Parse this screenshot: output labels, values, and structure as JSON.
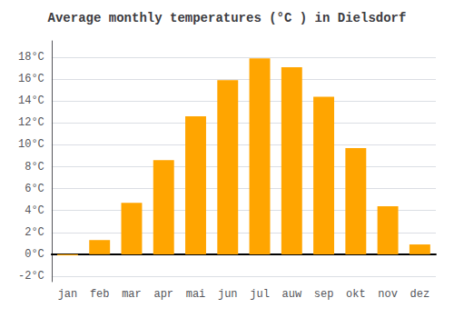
{
  "chart_data": {
    "type": "bar",
    "title": "Average monthly temperatures (°C ) in Dielsdorf",
    "categories": [
      "jan",
      "feb",
      "mar",
      "apr",
      "mai",
      "jun",
      "jul",
      "auw",
      "sep",
      "okt",
      "nov",
      "dez"
    ],
    "values": [
      -0.1,
      1.3,
      4.7,
      8.6,
      12.6,
      15.9,
      17.9,
      17.1,
      14.4,
      9.7,
      4.4,
      0.9
    ],
    "color": "#FFA500",
    "ylim": [
      -2.5,
      19.5
    ],
    "yticks": [
      {
        "value": -2,
        "label": "-2°C"
      },
      {
        "value": 0,
        "label": "0°C"
      },
      {
        "value": 2,
        "label": "2°C"
      },
      {
        "value": 4,
        "label": "4°C"
      },
      {
        "value": 6,
        "label": "6°C"
      },
      {
        "value": 8,
        "label": "8°C"
      },
      {
        "value": 10,
        "label": "10°C"
      },
      {
        "value": 12,
        "label": "12°C"
      },
      {
        "value": 14,
        "label": "14°C"
      },
      {
        "value": 16,
        "label": "16°C"
      },
      {
        "value": 18,
        "label": "18°C"
      }
    ],
    "grid": true
  }
}
